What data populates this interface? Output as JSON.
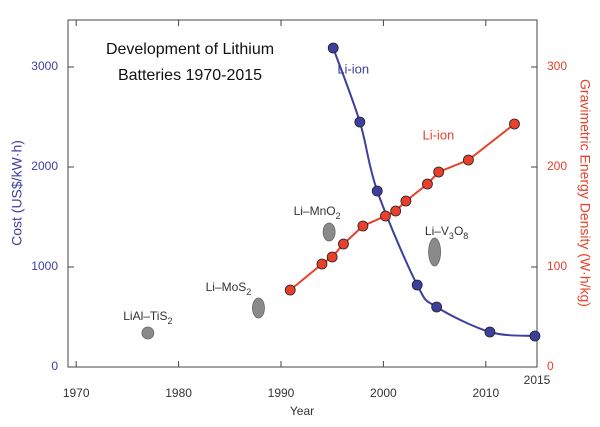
{
  "chart_data": {
    "type": "line",
    "title_lines": [
      "Development of Lithium",
      "Batteries 1970-2015"
    ],
    "xlabel": "Year",
    "ylabel": "Cost (US$/kW·h)",
    "y2label": "Gravimetric Energy Density (W·h/kg)",
    "xlim": [
      1969.2,
      2015
    ],
    "xticks": [
      1970,
      1980,
      1990,
      2000,
      2010,
      2015
    ],
    "ylim": [
      0,
      3470
    ],
    "yticks": [
      0,
      1000,
      2000,
      3000
    ],
    "y2lim": [
      0,
      347
    ],
    "y2ticks": [
      0,
      100,
      200,
      300
    ],
    "ycolor": "#3b3fa0",
    "y2color": "#e8402a",
    "series": [
      {
        "annotation": "Li-ion",
        "color": "#3b3fa0",
        "axis": "y",
        "x": [
          1995.1,
          1997.7,
          1999.4,
          2003.3,
          2005.2,
          2010.4,
          2014.8
        ],
        "values": [
          3190,
          2450,
          1760,
          820,
          600,
          350,
          310
        ]
      },
      {
        "annotation": "Li-ion",
        "color": "#e8402a",
        "axis": "y2",
        "x": [
          1990.9,
          1994,
          1995,
          1996.1,
          1998,
          2000.2,
          2001.2,
          2002.2,
          2004.3,
          2005.4,
          2008.3,
          2012.8
        ],
        "values": [
          77,
          103,
          110,
          123,
          141,
          151,
          156,
          166,
          183,
          195,
          207,
          243
        ]
      }
    ],
    "other": {
      "color": "#8a8a8a",
      "axis": "y2",
      "points": [
        {
          "label_parts": [
            {
              "text": "LiAl–TiS"
            },
            {
              "text": "2",
              "sub": true
            }
          ],
          "x": 1977,
          "y": 34
        },
        {
          "label_parts": [
            {
              "text": "Li–MoS"
            },
            {
              "text": "2",
              "sub": true
            }
          ],
          "x": 1987.8,
          "y": 59
        },
        {
          "label_parts": [
            {
              "text": "Li–MnO"
            },
            {
              "text": "2",
              "sub": true
            }
          ],
          "x": 1994.7,
          "y": 135
        },
        {
          "label_parts": [
            {
              "text": "Li–V"
            },
            {
              "text": "3",
              "sub": true
            },
            {
              "text": "O"
            },
            {
              "text": "8",
              "sub": true
            }
          ],
          "x": 2005,
          "y": 115
        }
      ]
    }
  }
}
